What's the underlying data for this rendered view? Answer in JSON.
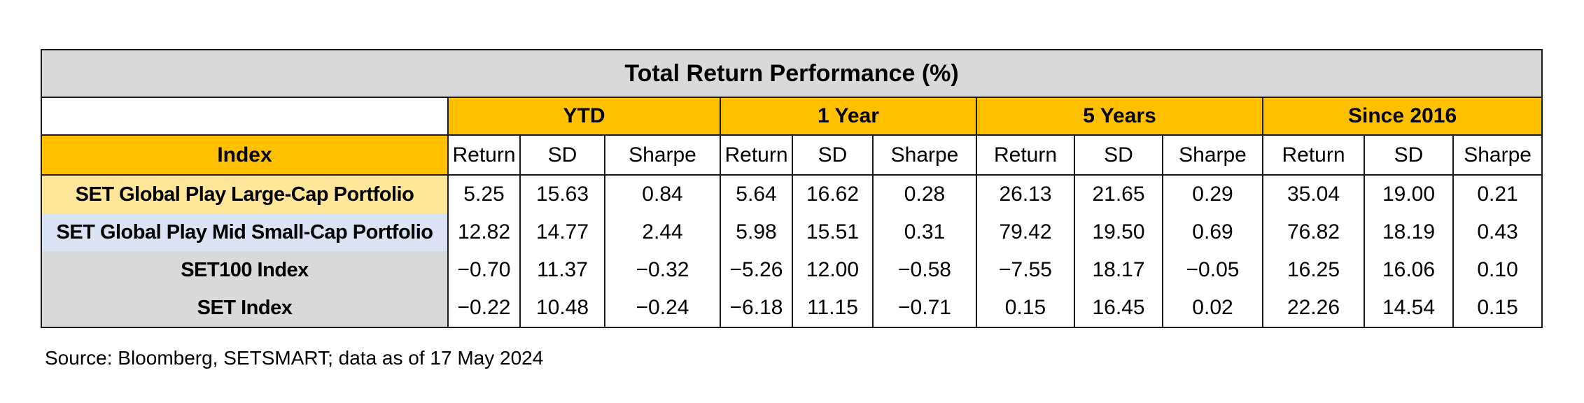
{
  "chart_data": {
    "type": "table",
    "title": "Total Return Performance (%)",
    "index_header": "Index",
    "periods": [
      "YTD",
      "1 Year",
      "5 Years",
      "Since 2016"
    ],
    "metrics": [
      "Return",
      "SD",
      "Sharpe"
    ],
    "rows": [
      {
        "name": "SET Global Play Large-Cap Portfolio",
        "values": [
          "5.25",
          "15.63",
          "0.84",
          "5.64",
          "16.62",
          "0.28",
          "26.13",
          "21.65",
          "0.29",
          "35.04",
          "19.00",
          "0.21"
        ],
        "color": "#ffe699"
      },
      {
        "name": "SET Global Play Mid Small-Cap Portfolio",
        "values": [
          "12.82",
          "14.77",
          "2.44",
          "5.98",
          "15.51",
          "0.31",
          "79.42",
          "19.50",
          "0.69",
          "76.82",
          "18.19",
          "0.43"
        ],
        "color": "#dae3f3"
      },
      {
        "name": "SET100 Index",
        "values": [
          "−0.70",
          "11.37",
          "−0.32",
          "−5.26",
          "12.00",
          "−0.58",
          "−7.55",
          "18.17",
          "−0.05",
          "16.25",
          "16.06",
          "0.10"
        ],
        "color": "#d9d9d9"
      },
      {
        "name": "SET Index",
        "values": [
          "−0.22",
          "10.48",
          "−0.24",
          "−6.18",
          "11.15",
          "−0.71",
          "0.15",
          "16.45",
          "0.02",
          "22.26",
          "14.54",
          "0.15"
        ],
        "color": "#d9d9d9"
      }
    ],
    "colors": {
      "header_accent": "#ffc000",
      "title_background": "#d9d9d9"
    }
  },
  "source_note": "Source: Bloomberg, SETSMART; data as of 17 May 2024"
}
